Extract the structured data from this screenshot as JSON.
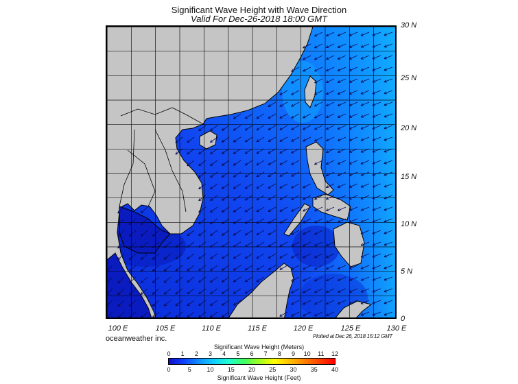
{
  "title": "Significant Wave Height with Wave Direction",
  "subtitle": "Valid For Dec-26-2018 18:00 GMT",
  "map": {
    "lat_labels": [
      "30 N",
      "25 N",
      "20 N",
      "15 N",
      "10 N",
      "5 N",
      "0"
    ],
    "lon_labels": [
      "100 E",
      "105 E",
      "110 E",
      "115 E",
      "120 E",
      "125 E",
      "130 E"
    ],
    "lat_range": [
      0,
      30
    ],
    "lon_range": [
      100,
      130
    ],
    "grid_step_degrees": 2.5,
    "land_color": "#c5c5c5",
    "prevailing_wave_direction": "from northeast (toward southwest)"
  },
  "credits": {
    "company": "oceanweather inc.",
    "plotted": "Plotted at Dec 26, 2018 15:12 GMT"
  },
  "colorbar": {
    "title_meters": "Significant Wave Height (Meters)",
    "title_feet": "Significant Wave Height (Feet)",
    "meters_ticks": [
      "0",
      "1",
      "2",
      "3",
      "4",
      "5",
      "6",
      "7",
      "8",
      "9",
      "10",
      "11",
      "12"
    ],
    "feet_ticks": [
      "0",
      "5",
      "10",
      "15",
      "20",
      "25",
      "30",
      "35",
      "40"
    ],
    "colors": [
      "#1010c8",
      "#1040ff",
      "#1090ff",
      "#10d0ff",
      "#20ffd0",
      "#40ff60",
      "#a0ff20",
      "#ffff00",
      "#ffc000",
      "#ff8000",
      "#ff4000",
      "#ff0000"
    ]
  }
}
